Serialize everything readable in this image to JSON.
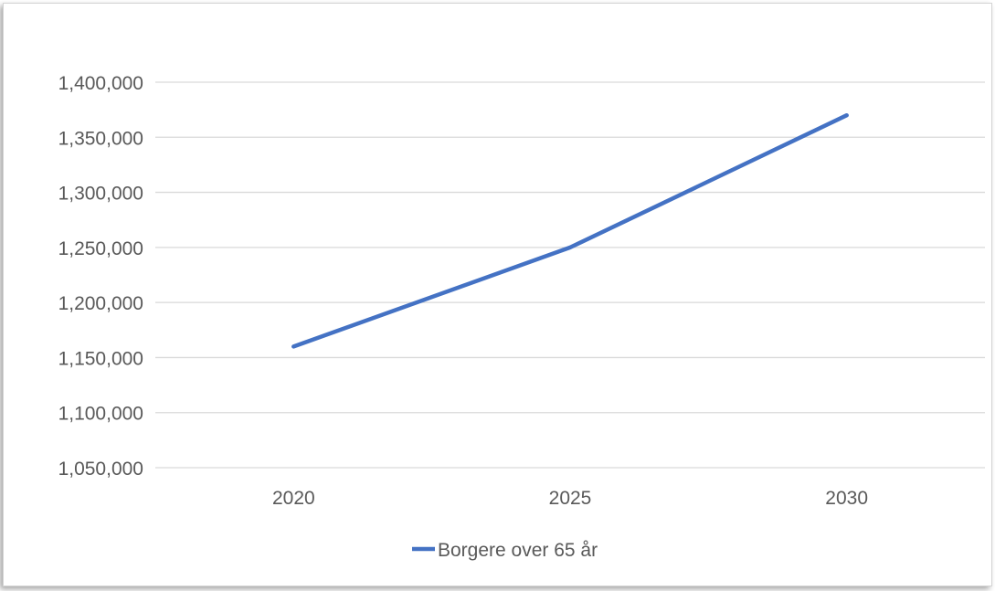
{
  "chart_data": {
    "type": "line",
    "categories": [
      "2020",
      "2025",
      "2030"
    ],
    "series": [
      {
        "name": "Borgere over 65 år",
        "values": [
          1160000,
          1250000,
          1370000
        ],
        "color": "#4472C4"
      }
    ],
    "ylim": [
      1050000,
      1400000
    ],
    "y_ticks": [
      "1,050,000",
      "1,100,000",
      "1,150,000",
      "1,200,000",
      "1,250,000",
      "1,300,000",
      "1,350,000",
      "1,400,000"
    ],
    "y_tick_values": [
      1050000,
      1100000,
      1150000,
      1200000,
      1250000,
      1300000,
      1350000,
      1400000
    ],
    "grid": true,
    "legend_position": "bottom",
    "title": "",
    "xlabel": "",
    "ylabel": "",
    "colors": {
      "gridline": "#d9d9d9",
      "axis_text": "#595959"
    }
  }
}
